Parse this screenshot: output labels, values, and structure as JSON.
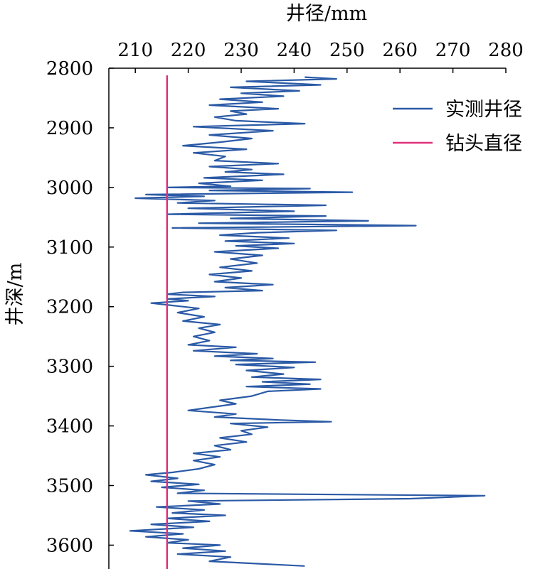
{
  "chart_data": {
    "type": "line",
    "x_axis_position": "top",
    "y_axis_inverted": true,
    "xlabel": "井径/mm",
    "ylabel": "井深/m",
    "xlim": [
      205,
      280
    ],
    "ylim": [
      2800,
      3640
    ],
    "x_ticks": [
      210,
      220,
      230,
      240,
      250,
      260,
      270,
      280
    ],
    "y_ticks": [
      2800,
      2900,
      3000,
      3100,
      3200,
      3300,
      3400,
      3500,
      3600
    ],
    "grid": false,
    "legend_position": "top-right",
    "series": [
      {
        "name": "实测井径",
        "color": "#2b5aa6",
        "points": [
          [
            242,
            2815
          ],
          [
            248,
            2818
          ],
          [
            231,
            2822
          ],
          [
            245,
            2828
          ],
          [
            228,
            2832
          ],
          [
            241,
            2838
          ],
          [
            230,
            2842
          ],
          [
            238,
            2847
          ],
          [
            226,
            2852
          ],
          [
            234,
            2857
          ],
          [
            224,
            2862
          ],
          [
            237,
            2868
          ],
          [
            228,
            2872
          ],
          [
            231,
            2877
          ],
          [
            225,
            2882
          ],
          [
            229,
            2888
          ],
          [
            242,
            2893
          ],
          [
            221,
            2898
          ],
          [
            236,
            2905
          ],
          [
            224,
            2912
          ],
          [
            232,
            2918
          ],
          [
            226,
            2924
          ],
          [
            219,
            2930
          ],
          [
            231,
            2936
          ],
          [
            221,
            2942
          ],
          [
            227,
            2948
          ],
          [
            225,
            2955
          ],
          [
            237,
            2960
          ],
          [
            224,
            2965
          ],
          [
            232,
            2970
          ],
          [
            227,
            2974
          ],
          [
            238,
            2978
          ],
          [
            223,
            2984
          ],
          [
            234,
            2988
          ],
          [
            222,
            2993
          ],
          [
            228,
            2998
          ],
          [
            216,
            3000
          ],
          [
            243,
            3002
          ],
          [
            224,
            3005
          ],
          [
            251,
            3008
          ],
          [
            212,
            3012
          ],
          [
            223,
            3015
          ],
          [
            210,
            3018
          ],
          [
            225,
            3022
          ],
          [
            218,
            3026
          ],
          [
            246,
            3030
          ],
          [
            220,
            3035
          ],
          [
            240,
            3040
          ],
          [
            216,
            3045
          ],
          [
            246,
            3048
          ],
          [
            228,
            3052
          ],
          [
            254,
            3056
          ],
          [
            222,
            3060
          ],
          [
            263,
            3064
          ],
          [
            217,
            3068
          ],
          [
            248,
            3072
          ],
          [
            233,
            3076
          ],
          [
            226,
            3080
          ],
          [
            239,
            3085
          ],
          [
            227,
            3090
          ],
          [
            240,
            3094
          ],
          [
            229,
            3098
          ],
          [
            237,
            3102
          ],
          [
            225,
            3108
          ],
          [
            234,
            3114
          ],
          [
            228,
            3120
          ],
          [
            233,
            3127
          ],
          [
            226,
            3134
          ],
          [
            232,
            3140
          ],
          [
            224,
            3146
          ],
          [
            230,
            3152
          ],
          [
            225,
            3158
          ],
          [
            236,
            3163
          ],
          [
            227,
            3168
          ],
          [
            234,
            3173
          ],
          [
            219,
            3176
          ],
          [
            216,
            3179
          ],
          [
            225,
            3183
          ],
          [
            216,
            3187
          ],
          [
            220,
            3190
          ],
          [
            213,
            3194
          ],
          [
            217,
            3198
          ],
          [
            222,
            3203
          ],
          [
            218,
            3210
          ],
          [
            223,
            3217
          ],
          [
            219,
            3224
          ],
          [
            226,
            3230
          ],
          [
            222,
            3236
          ],
          [
            225,
            3243
          ],
          [
            221,
            3250
          ],
          [
            224,
            3257
          ],
          [
            220,
            3264
          ],
          [
            229,
            3268
          ],
          [
            221,
            3274
          ],
          [
            233,
            3279
          ],
          [
            225,
            3283
          ],
          [
            236,
            3287
          ],
          [
            228,
            3290
          ],
          [
            244,
            3293
          ],
          [
            229,
            3297
          ],
          [
            240,
            3302
          ],
          [
            231,
            3307
          ],
          [
            238,
            3313
          ],
          [
            232,
            3318
          ],
          [
            245,
            3322
          ],
          [
            234,
            3326
          ],
          [
            243,
            3330
          ],
          [
            231,
            3334
          ],
          [
            245,
            3338
          ],
          [
            235,
            3342
          ],
          [
            232,
            3350
          ],
          [
            226,
            3357
          ],
          [
            229,
            3363
          ],
          [
            224,
            3369
          ],
          [
            220,
            3374
          ],
          [
            229,
            3380
          ],
          [
            225,
            3385
          ],
          [
            237,
            3390
          ],
          [
            247,
            3393
          ],
          [
            228,
            3396
          ],
          [
            235,
            3402
          ],
          [
            230,
            3408
          ],
          [
            232,
            3414
          ],
          [
            226,
            3420
          ],
          [
            231,
            3427
          ],
          [
            225,
            3433
          ],
          [
            228,
            3440
          ],
          [
            221,
            3446
          ],
          [
            226,
            3452
          ],
          [
            221,
            3458
          ],
          [
            225,
            3465
          ],
          [
            222,
            3472
          ],
          [
            217,
            3478
          ],
          [
            212,
            3482
          ],
          [
            218,
            3488
          ],
          [
            213,
            3493
          ],
          [
            222,
            3498
          ],
          [
            215,
            3503
          ],
          [
            223,
            3508
          ],
          [
            218,
            3513
          ],
          [
            276,
            3517
          ],
          [
            262,
            3522
          ],
          [
            220,
            3526
          ],
          [
            226,
            3531
          ],
          [
            214,
            3536
          ],
          [
            223,
            3541
          ],
          [
            217,
            3546
          ],
          [
            227,
            3550
          ],
          [
            216,
            3555
          ],
          [
            224,
            3560
          ],
          [
            213,
            3565
          ],
          [
            221,
            3570
          ],
          [
            209,
            3576
          ],
          [
            219,
            3581
          ],
          [
            212,
            3586
          ],
          [
            220,
            3591
          ],
          [
            216,
            3596
          ],
          [
            226,
            3600
          ],
          [
            219,
            3605
          ],
          [
            227,
            3610
          ],
          [
            218,
            3615
          ],
          [
            228,
            3620
          ],
          [
            224,
            3627
          ],
          [
            242,
            3635
          ]
        ]
      },
      {
        "name": "钻头直径",
        "color": "#e0307a",
        "points": [
          [
            216,
            2812
          ],
          [
            216,
            3640
          ]
        ]
      }
    ]
  }
}
